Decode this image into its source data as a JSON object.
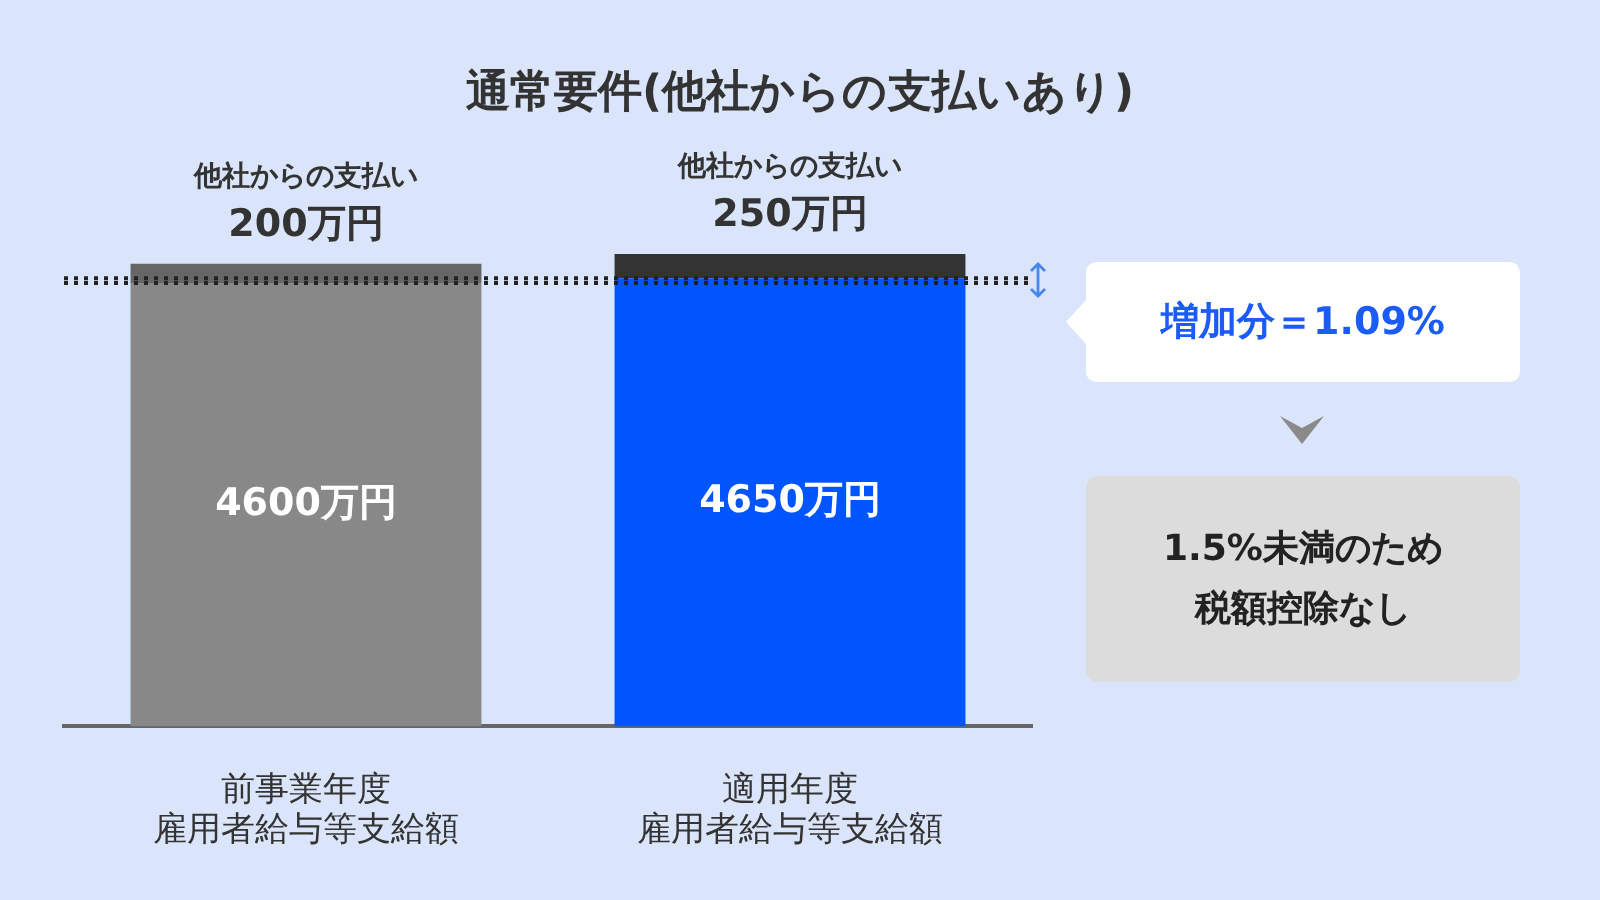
{
  "chart_data": {
    "type": "bar",
    "title": "通常要件(他社からの支払いあり)",
    "categories": [
      "前事業年度雇用者給与等支給額",
      "適用年度雇用者給与等支給額"
    ],
    "stacked": true,
    "series": [
      {
        "colors": [
          "#888888",
          "#0055ff"
        ],
        "values": [
          4600,
          4650
        ],
        "value_labels": [
          "4600万円",
          "4650万円"
        ]
      },
      {
        "name": "他社からの支払い",
        "colors": [
          "#666666",
          "#333333"
        ],
        "values": [
          200,
          250
        ],
        "value_labels": [
          "200万円",
          "250万円"
        ]
      }
    ],
    "ref_lines": [
      {
        "axis": "y",
        "value": 4600,
        "line_style": "dotted",
        "color": "#222222"
      },
      {
        "axis": "y",
        "value": 4650,
        "line_style": "dotted",
        "color": "#222222"
      }
    ],
    "annotations": [
      "増加分＝1.09%",
      "1.5%未満のため税額控除なし"
    ],
    "tick_labels": "x",
    "grid": false,
    "legend": false
  }
}
